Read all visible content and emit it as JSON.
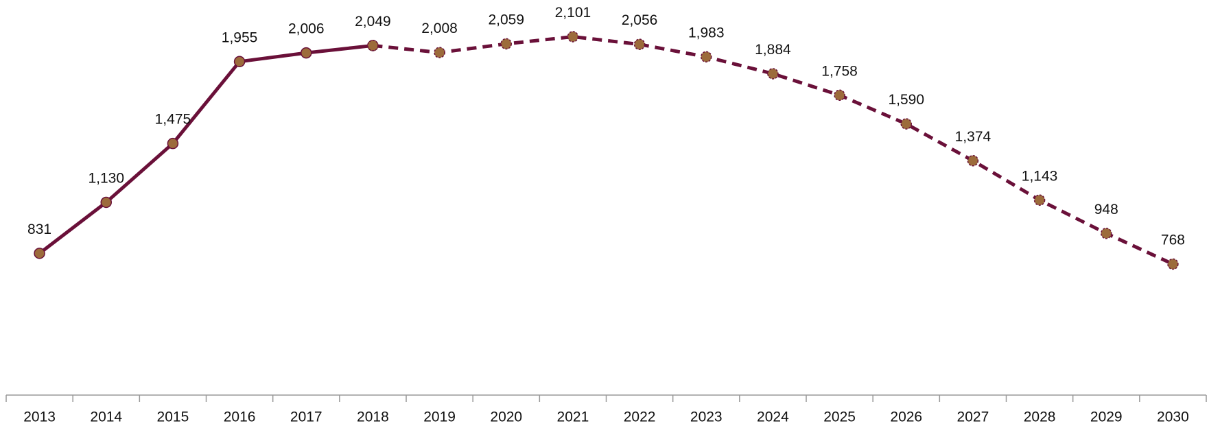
{
  "chart_data": {
    "type": "line",
    "categories": [
      "2013",
      "2014",
      "2015",
      "2016",
      "2017",
      "2018",
      "2019",
      "2020",
      "2021",
      "2022",
      "2023",
      "2024",
      "2025",
      "2026",
      "2027",
      "2028",
      "2029",
      "2030"
    ],
    "series": [
      {
        "color": "#6a1039",
        "marker_color": "#9c6b3b",
        "dash": false,
        "values": [
          831,
          1130,
          1475,
          1955,
          2006,
          2049,
          null,
          null,
          null,
          null,
          null,
          null,
          null,
          null,
          null,
          null,
          null,
          null
        ],
        "value_labels": [
          "831",
          "1,130",
          "1,475",
          "1,955",
          "2,006",
          "2,049",
          null,
          null,
          null,
          null,
          null,
          null,
          null,
          null,
          null,
          null,
          null,
          null
        ]
      },
      {
        "color": "#6a1039",
        "marker_color": "#9c6b3b",
        "dash": true,
        "values": [
          null,
          null,
          null,
          null,
          null,
          2049,
          2008,
          2059,
          2101,
          2056,
          1983,
          1884,
          1758,
          1590,
          1374,
          1143,
          948,
          768
        ],
        "value_labels": [
          null,
          null,
          null,
          null,
          null,
          null,
          "2,008",
          "2,059",
          "2,101",
          "2,056",
          "1,983",
          "1,884",
          "1,758",
          "1,590",
          "1,374",
          "1,143",
          "948",
          "768"
        ]
      }
    ],
    "ylim": [
      0,
      2300
    ],
    "grid": false
  }
}
